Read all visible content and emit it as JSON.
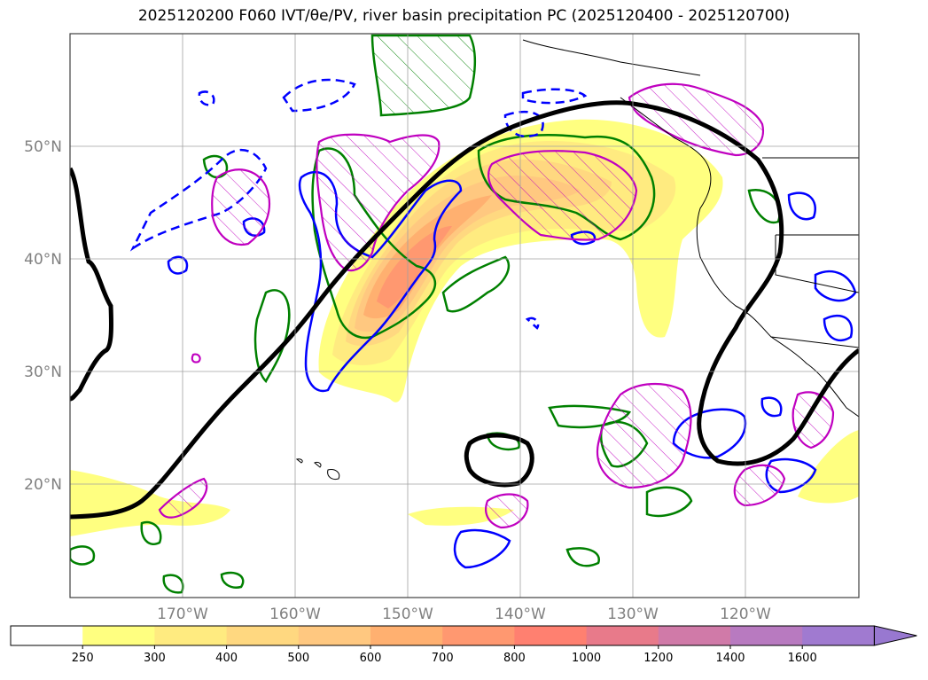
{
  "title": "2025120200 F060 IVT/θe/PV, river basin precipitation PC (2025120400 - 2025120700)",
  "map": {
    "lat_labels": [
      "50°N",
      "40°N",
      "30°N",
      "20°N"
    ],
    "lon_labels": [
      "170°W",
      "160°W",
      "150°W",
      "140°W",
      "130°W",
      "120°W"
    ],
    "extent": {
      "lon_min": -180,
      "lon_max": -110,
      "lat_min": 10,
      "lat_max": 60
    },
    "grid": true
  },
  "colorbar": {
    "ticks": [
      "250",
      "300",
      "400",
      "500",
      "600",
      "700",
      "800",
      "1000",
      "1200",
      "1400",
      "1600"
    ],
    "colors": [
      "#ffffff",
      "#ffff80",
      "#ffeb80",
      "#ffd880",
      "#ffc880",
      "#ffb070",
      "#ff9870",
      "#ff8070",
      "#e87a8a",
      "#d07aa8",
      "#b87ac0",
      "#a07ad0"
    ],
    "extend": "max"
  },
  "legend_colors": {
    "ivt_contour": "#000000",
    "theta_e_positive": "#0000ff",
    "pv_anomaly": "#008000",
    "precip_hatch": "#c000c0",
    "coastline": "#000000"
  }
}
